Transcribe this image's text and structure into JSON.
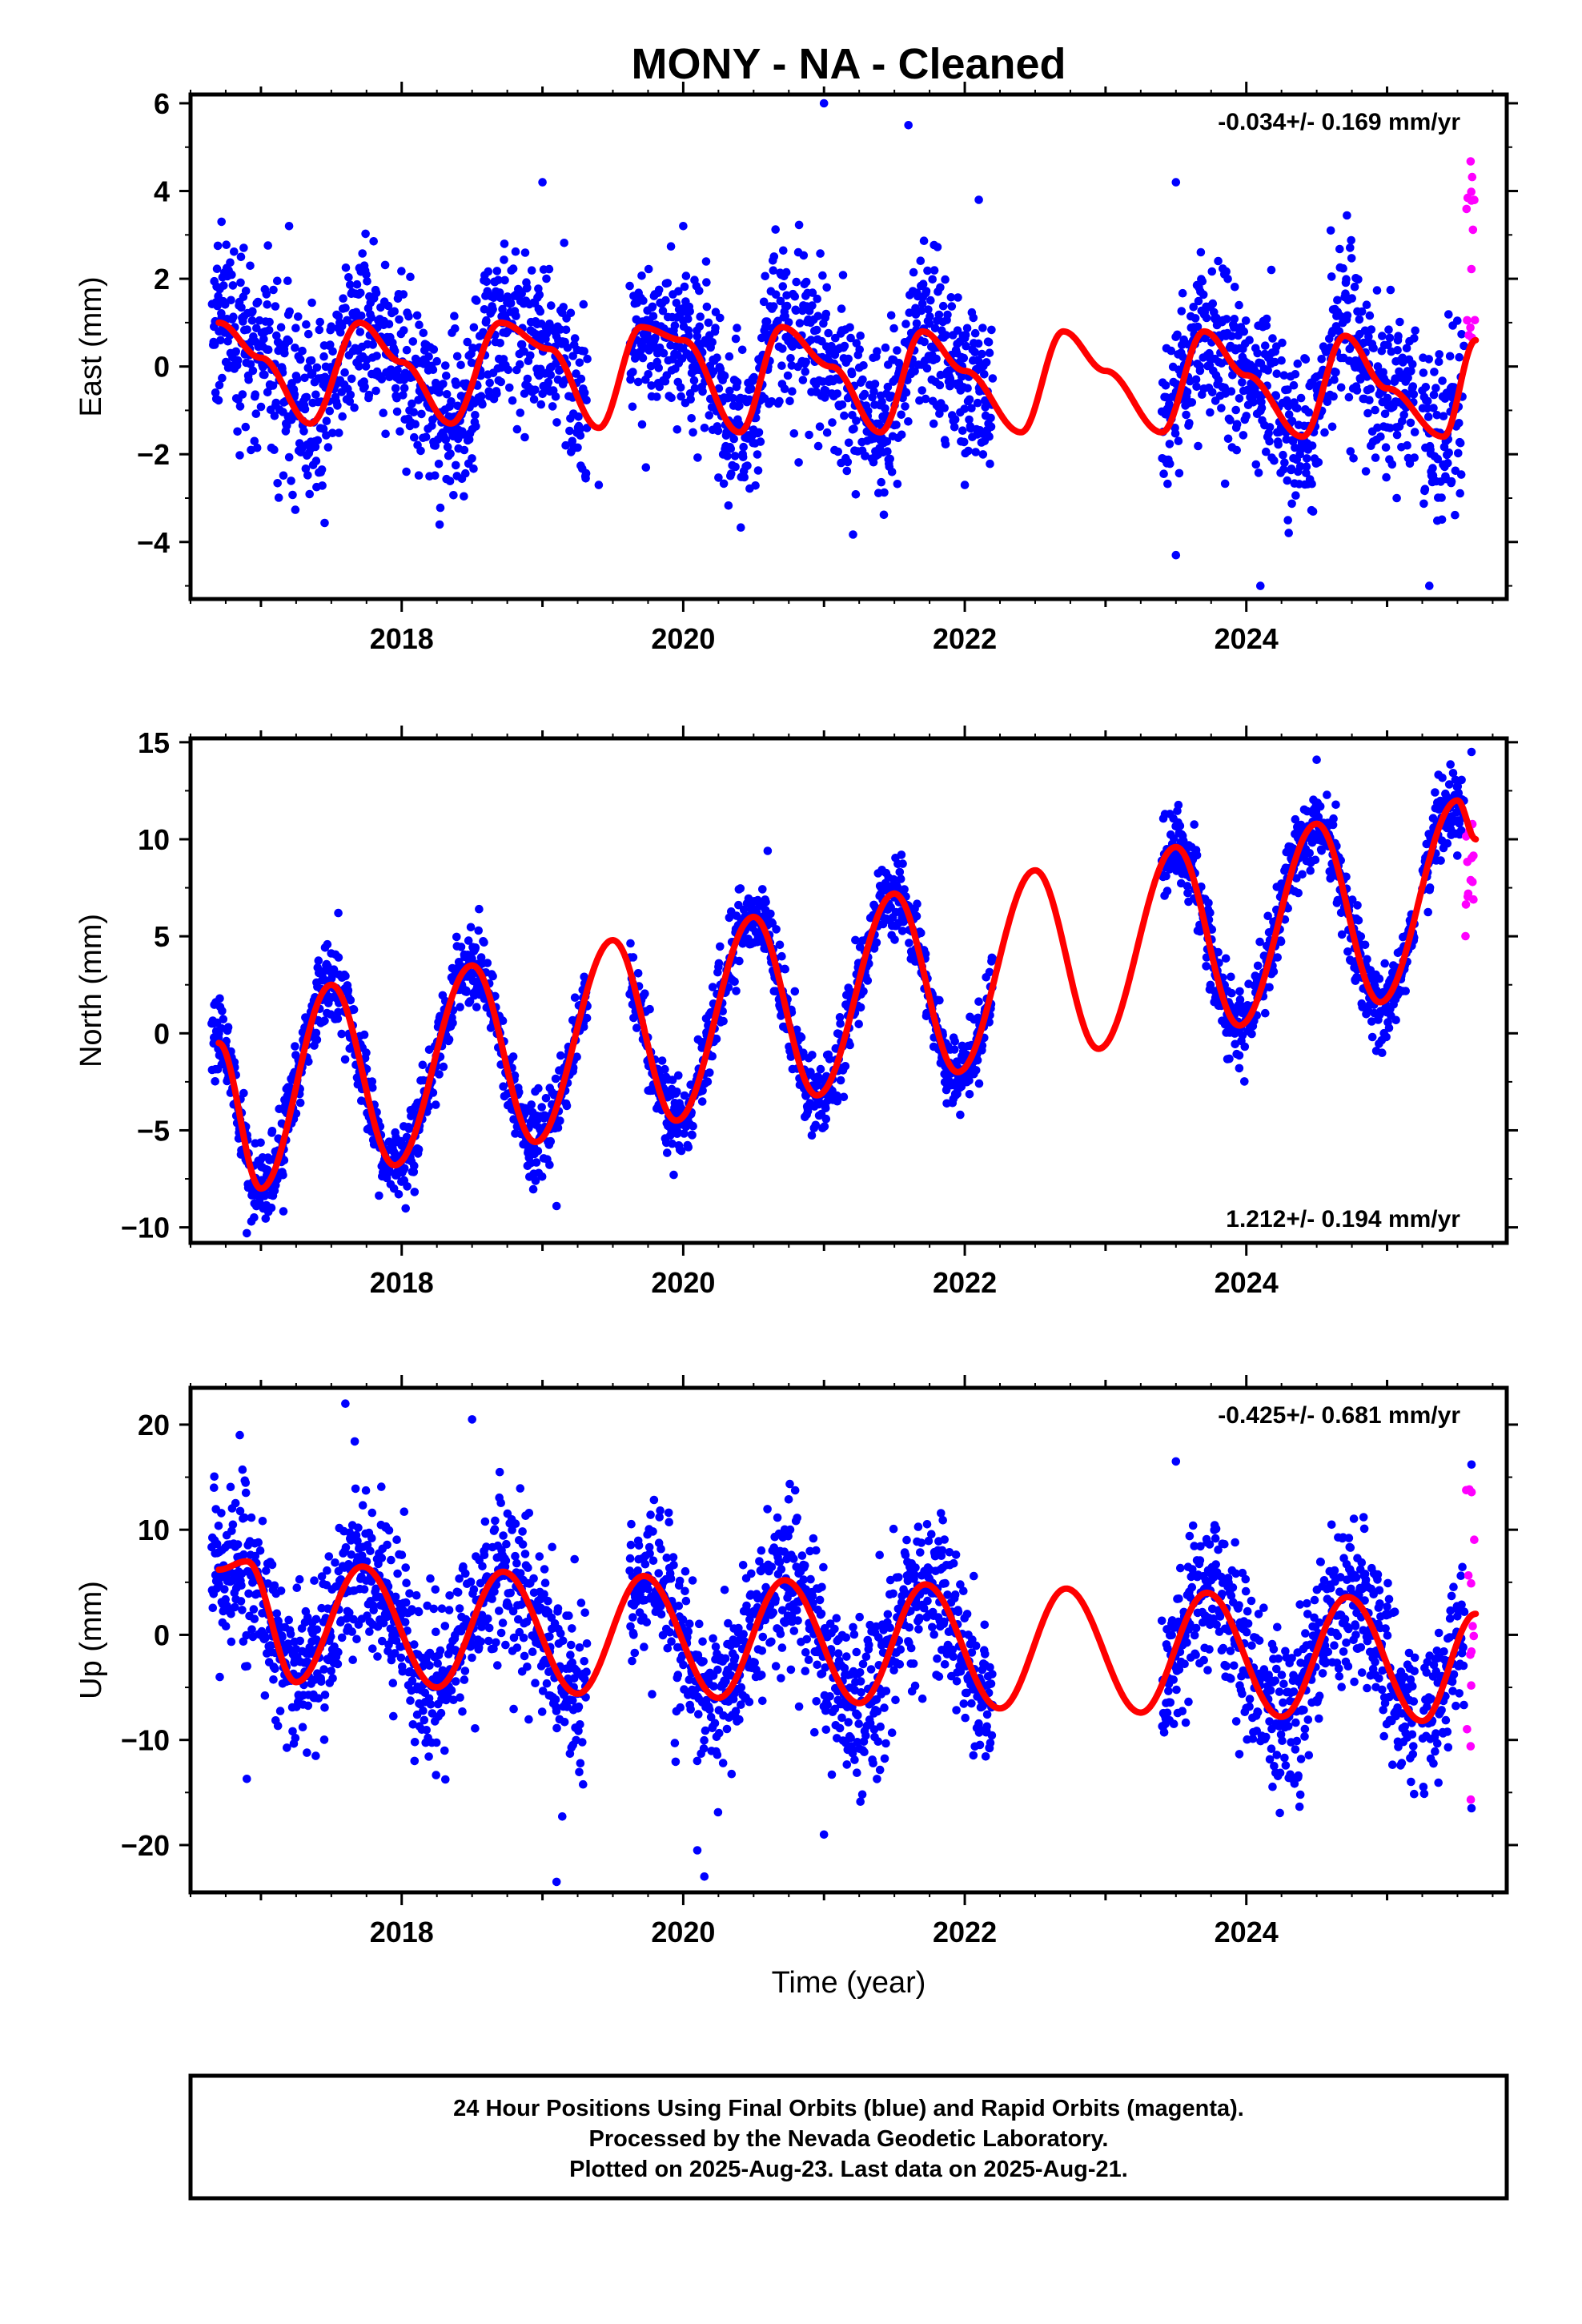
{
  "page": {
    "title": "MONY  - NA - Cleaned",
    "x_axis_label": "Time (year)"
  },
  "footer": {
    "lines": [
      "24 Hour Positions Using Final Orbits (blue) and Rapid Orbits (magenta).",
      "Processed by the Nevada Geodetic Laboratory.",
      "Plotted on 2025-Aug-23. Last data on 2025-Aug-21."
    ]
  },
  "colors": {
    "final_orbits": "#0000ff",
    "rapid_orbits": "#ff00ff",
    "model_fit": "#ff0000",
    "frame": "#000000"
  },
  "chart_data": [
    {
      "type": "scatter",
      "component": "east",
      "ylabel": "East (mm)",
      "xlabel": "",
      "rate_text": "-0.034+/- 0.169 mm/yr",
      "rate_position": "top-right",
      "xlim": [
        2016.5,
        2025.85
      ],
      "ylim": [
        -5.3,
        6.2
      ],
      "xticks": [
        2018,
        2020,
        2022,
        2024
      ],
      "xtick_labels": [
        "2018",
        "2020",
        "2022",
        "2024"
      ],
      "yticks": [
        -4,
        -2,
        0,
        2,
        4,
        6
      ],
      "ytick_labels": [
        "−4",
        "−2",
        "0",
        "2",
        "4",
        "6"
      ],
      "grid": false,
      "data_coverage": [
        [
          2016.65,
          2019.32
        ],
        [
          2019.62,
          2022.2
        ],
        [
          2023.4,
          2025.2
        ],
        [
          2025.25,
          2025.63
        ]
      ],
      "rapid_start": 2025.55,
      "rapid_y_range": [
        0.5,
        5.0
      ],
      "model": {
        "trend": -0.034,
        "offset": -0.3,
        "a1": 0.8,
        "p1": 5.4,
        "a2": 0.45,
        "p2": 3.2,
        "start_value_2016_7": 1.0
      },
      "model_samples": {
        "x": [
          2016.7,
          2017.0,
          2017.35,
          2017.7,
          2018.0,
          2018.35,
          2018.7,
          2019.05,
          2019.4,
          2019.7,
          2020.0,
          2020.4,
          2020.7,
          2021.05,
          2021.4,
          2021.7,
          2022.0,
          2022.4,
          2022.7,
          2023.0,
          2023.4,
          2023.7,
          2024.0,
          2024.4,
          2024.7,
          2025.0,
          2025.4,
          2025.63
        ],
        "y": [
          1.0,
          0.2,
          -1.3,
          1.0,
          0.1,
          -1.3,
          1.0,
          0.4,
          -1.4,
          0.9,
          0.6,
          -1.5,
          0.9,
          0.0,
          -1.5,
          0.8,
          -0.1,
          -1.5,
          0.8,
          -0.1,
          -1.5,
          0.8,
          -0.2,
          -1.6,
          0.7,
          -0.5,
          -1.6,
          0.6
        ]
      },
      "outliers": [
        [
          2016.72,
          3.3
        ],
        [
          2017.2,
          3.2
        ],
        [
          2019.0,
          4.2
        ],
        [
          2019.4,
          -2.7
        ],
        [
          2020.0,
          3.2
        ],
        [
          2021.0,
          6.0
        ],
        [
          2021.6,
          5.5
        ],
        [
          2022.1,
          3.8
        ],
        [
          2022.0,
          -2.7
        ],
        [
          2023.5,
          4.2
        ],
        [
          2023.5,
          -4.3
        ],
        [
          2024.1,
          -5.0
        ],
        [
          2024.6,
          3.1
        ],
        [
          2025.3,
          -5.0
        ]
      ]
    },
    {
      "type": "scatter",
      "component": "north",
      "ylabel": "North (mm)",
      "xlabel": "",
      "rate_text": "1.212+/- 0.194 mm/yr",
      "rate_position": "bottom-right",
      "xlim": [
        2016.5,
        2025.85
      ],
      "ylim": [
        -10.8,
        15.2
      ],
      "xticks": [
        2018,
        2020,
        2022,
        2024
      ],
      "xtick_labels": [
        "2018",
        "2020",
        "2022",
        "2024"
      ],
      "yticks": [
        -10,
        -5,
        0,
        5,
        10,
        15
      ],
      "ytick_labels": [
        "−10",
        "−5",
        "0",
        "5",
        "10",
        "15"
      ],
      "grid": false,
      "data_coverage": [
        [
          2016.65,
          2019.32
        ],
        [
          2019.62,
          2022.2
        ],
        [
          2023.4,
          2025.2
        ],
        [
          2025.25,
          2025.63
        ]
      ],
      "rapid_start": 2025.55,
      "rapid_y_range": [
        4.6,
        11.5
      ],
      "model": {
        "trend": 1.212,
        "amplitude": 5.0,
        "peak_phase_year": 0.53
      },
      "model_samples": {
        "x": [
          2016.7,
          2017.0,
          2017.5,
          2017.95,
          2018.5,
          2018.95,
          2019.5,
          2019.95,
          2020.5,
          2020.95,
          2021.5,
          2021.95,
          2022.5,
          2022.95,
          2023.5,
          2023.95,
          2024.5,
          2024.95,
          2025.5,
          2025.63
        ],
        "y": [
          -0.5,
          -8.0,
          2.5,
          -6.8,
          3.5,
          -5.6,
          4.8,
          -4.5,
          6.0,
          -3.2,
          7.2,
          -2.0,
          8.4,
          -0.8,
          9.6,
          0.4,
          10.8,
          1.6,
          12.0,
          10.0
        ]
      },
      "outliers": [
        [
          2016.68,
          1.6
        ],
        [
          2016.9,
          -10.3
        ],
        [
          2017.55,
          6.2
        ],
        [
          2018.55,
          6.4
        ],
        [
          2019.1,
          -8.9
        ],
        [
          2020.6,
          9.4
        ],
        [
          2021.55,
          9.2
        ],
        [
          2024.5,
          14.1
        ],
        [
          2025.6,
          14.5
        ],
        [
          2023.95,
          -1.8
        ]
      ]
    },
    {
      "type": "scatter",
      "component": "up",
      "ylabel": "Up (mm)",
      "xlabel": "Time (year)",
      "rate_text": "-0.425+/- 0.681 mm/yr",
      "rate_position": "top-right",
      "xlim": [
        2016.5,
        2025.85
      ],
      "ylim": [
        -24.5,
        23.5
      ],
      "xticks": [
        2018,
        2020,
        2022,
        2024
      ],
      "xtick_labels": [
        "2018",
        "2020",
        "2022",
        "2024"
      ],
      "yticks": [
        -20,
        -10,
        0,
        10,
        20
      ],
      "ytick_labels": [
        "−20",
        "−10",
        "0",
        "10",
        "20"
      ],
      "grid": false,
      "data_coverage": [
        [
          2016.65,
          2019.32
        ],
        [
          2019.62,
          2022.2
        ],
        [
          2023.4,
          2025.2
        ],
        [
          2025.25,
          2025.63
        ]
      ],
      "rapid_start": 2025.55,
      "rapid_y_range": [
        -16.0,
        16.0
      ],
      "model": {
        "trend": -0.425,
        "amplitude": 6.0,
        "peak_phase_year": 0.73
      },
      "model_samples": {
        "x": [
          2016.7,
          2016.9,
          2017.25,
          2017.72,
          2018.25,
          2018.72,
          2019.25,
          2019.72,
          2020.25,
          2020.72,
          2021.25,
          2021.72,
          2022.25,
          2022.72,
          2023.25,
          2023.72,
          2024.25,
          2024.72,
          2025.25,
          2025.63
        ],
        "y": [
          6.2,
          7.0,
          -4.5,
          6.5,
          -5.0,
          6.0,
          -5.6,
          5.6,
          -6.0,
          5.2,
          -6.5,
          4.8,
          -7.0,
          4.4,
          -7.4,
          4.0,
          -7.8,
          3.6,
          -8.2,
          2.0
        ]
      },
      "outliers": [
        [
          2017.6,
          22.0
        ],
        [
          2018.5,
          20.5
        ],
        [
          2016.85,
          19.0
        ],
        [
          2019.1,
          -23.5
        ],
        [
          2020.15,
          -23.0
        ],
        [
          2020.1,
          -20.5
        ],
        [
          2021.0,
          -19.0
        ],
        [
          2023.5,
          16.5
        ],
        [
          2016.9,
          -13.7
        ],
        [
          2025.6,
          -16.5
        ],
        [
          2025.6,
          16.2
        ]
      ]
    }
  ]
}
